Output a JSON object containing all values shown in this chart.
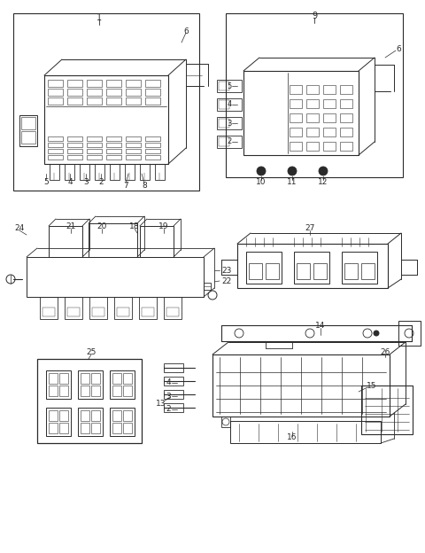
{
  "bg_color": "#ffffff",
  "line_color": "#2a2a2a",
  "fig_width": 4.8,
  "fig_height": 6.24,
  "dpi": 100
}
